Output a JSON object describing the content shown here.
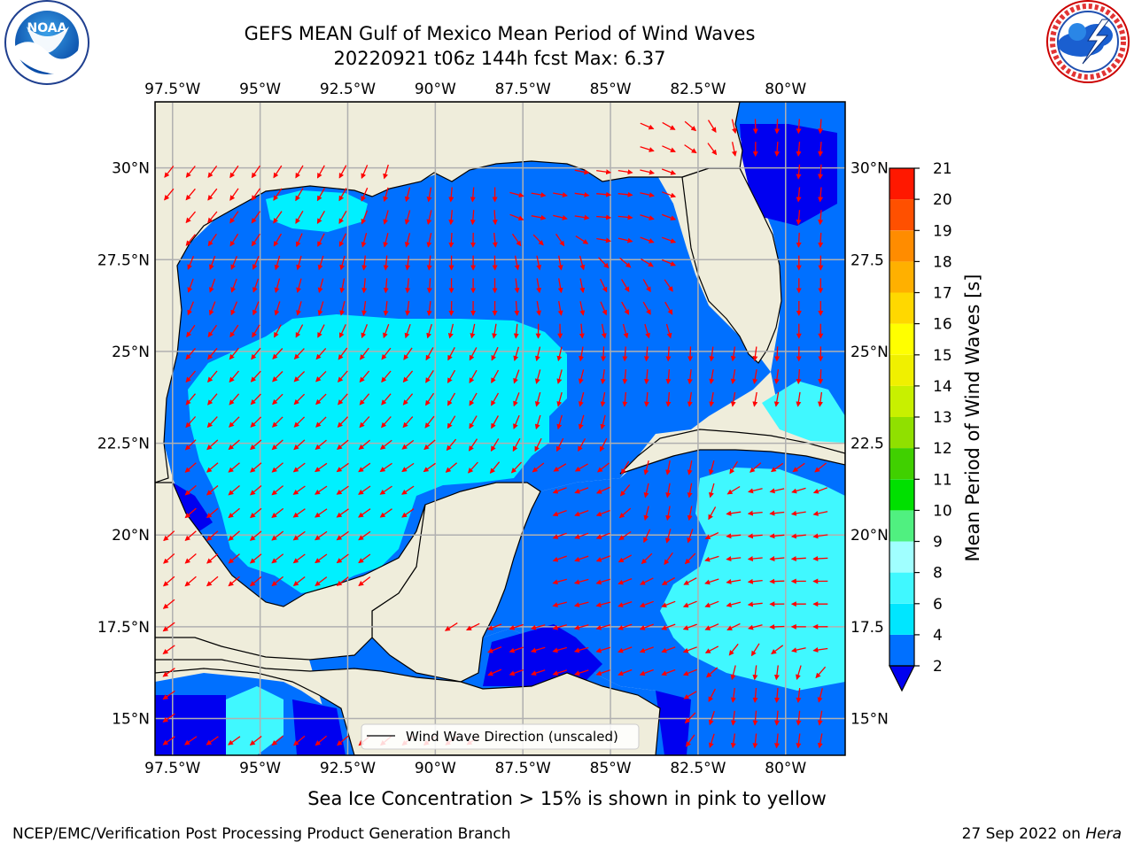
{
  "header": {
    "title_line1": "GEFS MEAN Gulf of Mexico Mean Period of Wind Waves",
    "title_line2": "20220921 t06z 144h fcst   Max: 6.37"
  },
  "logos": {
    "left": {
      "name": "NOAA",
      "ring_text": "NATIONAL OCEANIC AND ATMOSPHERIC ADMINISTRATION · U.S. DEPARTMENT OF COMMERCE"
    },
    "right": {
      "name": "NATIONAL WEATHER SERVICE"
    }
  },
  "colors": {
    "land": "#efeddb",
    "grid": "#b0b0b0",
    "arrow": "#ff0000",
    "coast": "#000000"
  },
  "chart_data": {
    "type": "heatmap",
    "region": "Gulf of Mexico",
    "variable": "Mean Period of Wind Waves",
    "max_value": 6.37,
    "lon_range": [
      -98.0,
      -78.3
    ],
    "lat_range": [
      14.0,
      31.8
    ],
    "lon_ticks": [
      "97.5°W",
      "95°W",
      "92.5°W",
      "90°W",
      "87.5°W",
      "85°W",
      "82.5°W",
      "80°W"
    ],
    "lon_tick_values": [
      -97.5,
      -95,
      -92.5,
      -90,
      -87.5,
      -85,
      -82.5,
      -80
    ],
    "lat_ticks": [
      "15°N",
      "17.5°N",
      "20°N",
      "22.5°N",
      "25°N",
      "27.5°N",
      "30°N"
    ],
    "lat_tick_values": [
      15,
      17.5,
      20,
      22.5,
      25,
      27.5,
      30
    ],
    "right_lat_ticks": [
      "15°N",
      "17.5",
      "20°N",
      "22.5",
      "25°N",
      "27.5",
      "30°N"
    ],
    "grid": true,
    "legend": {
      "placement": "bottom",
      "label": "Wind Wave Direction (unscaled)"
    },
    "colorbar": {
      "label": "Mean Period of Wind Waves [s]",
      "orientation": "vertical",
      "extend": "min",
      "bounds": [
        2,
        4,
        6,
        8,
        9,
        10,
        11,
        12,
        13,
        14,
        15,
        16,
        17,
        18,
        19,
        20,
        21
      ],
      "tick_labels": [
        "2",
        "4",
        "6",
        "8",
        "9",
        "10",
        "11",
        "12",
        "13",
        "14",
        "15",
        "16",
        "17",
        "18",
        "19",
        "20",
        "21"
      ],
      "under_color": "#0000f0",
      "colors": [
        "#0070ff",
        "#00e6ff",
        "#40f8ff",
        "#a0ffff",
        "#50f080",
        "#00e000",
        "#40d000",
        "#90e000",
        "#c8f000",
        "#f0f000",
        "#ffff00",
        "#ffd800",
        "#ffb000",
        "#ff8c00",
        "#ff5000",
        "#ff1800"
      ]
    },
    "period_zones": [
      {
        "level": "< 2 s",
        "lon": [
          -84.2,
          -81.8
        ],
        "lat": [
          29.2,
          31.8
        ]
      },
      {
        "level": "< 2 s",
        "lon": [
          -87.8,
          -85.3
        ],
        "lat": [
          15.9,
          17.4
        ]
      },
      {
        "level": "< 2 s",
        "lon": [
          -98.0,
          -95.5
        ],
        "lat": [
          14.0,
          15.8
        ]
      },
      {
        "level": "< 2 s",
        "lon": [
          -92.8,
          -91.0
        ],
        "lat": [
          14.0,
          15.6
        ]
      },
      {
        "level": "4-6 s",
        "lon": [
          -97.0,
          -86.3
        ],
        "lat": [
          20.0,
          25.8
        ]
      },
      {
        "level": "4-6 s",
        "lon": [
          -96.2,
          -92.8
        ],
        "lat": [
          28.2,
          29.5
        ]
      },
      {
        "level": "4-6 s",
        "lon": [
          -82.5,
          -78.3
        ],
        "lat": [
          16.5,
          22.0
        ]
      },
      {
        "level": "4-6 s",
        "lon": [
          -80.0,
          -78.3
        ],
        "lat": [
          22.8,
          24.2
        ]
      },
      {
        "level": "4-6 s",
        "lon": [
          -96.0,
          -94.8
        ],
        "lat": [
          14.2,
          15.8
        ]
      }
    ],
    "wind_direction_deg": [
      {
        "lon": -97.0,
        "lat": 28.5,
        "dir": 230
      },
      {
        "lon": -95.0,
        "lat": 28.7,
        "dir": 235
      },
      {
        "lon": -93.0,
        "lat": 28.8,
        "dir": 240
      },
      {
        "lon": -91.0,
        "lat": 28.5,
        "dir": 255
      },
      {
        "lon": -89.0,
        "lat": 29.2,
        "dir": 265
      },
      {
        "lon": -87.0,
        "lat": 29.2,
        "dir": 350
      },
      {
        "lon": -85.0,
        "lat": 28.8,
        "dir": 355
      },
      {
        "lon": -83.5,
        "lat": 28.0,
        "dir": 340
      },
      {
        "lon": -96.5,
        "lat": 27.0,
        "dir": 250
      },
      {
        "lon": -94.0,
        "lat": 27.0,
        "dir": 255
      },
      {
        "lon": -91.5,
        "lat": 27.0,
        "dir": 265
      },
      {
        "lon": -89.0,
        "lat": 27.0,
        "dir": 270
      },
      {
        "lon": -86.5,
        "lat": 27.0,
        "dir": 280
      },
      {
        "lon": -84.0,
        "lat": 26.5,
        "dir": 300
      },
      {
        "lon": -96.5,
        "lat": 24.5,
        "dir": 230
      },
      {
        "lon": -94.0,
        "lat": 24.0,
        "dir": 225
      },
      {
        "lon": -91.5,
        "lat": 24.0,
        "dir": 230
      },
      {
        "lon": -89.0,
        "lat": 24.0,
        "dir": 240
      },
      {
        "lon": -86.5,
        "lat": 24.0,
        "dir": 255
      },
      {
        "lon": -84.0,
        "lat": 24.5,
        "dir": 265
      },
      {
        "lon": -81.5,
        "lat": 24.0,
        "dir": 260
      },
      {
        "lon": -79.5,
        "lat": 26.0,
        "dir": 270
      },
      {
        "lon": -79.5,
        "lat": 29.5,
        "dir": 265
      },
      {
        "lon": -95.5,
        "lat": 21.5,
        "dir": 220
      },
      {
        "lon": -93.0,
        "lat": 21.0,
        "dir": 215
      },
      {
        "lon": -91.0,
        "lat": 21.5,
        "dir": 215
      },
      {
        "lon": -86.0,
        "lat": 20.5,
        "dir": 200
      },
      {
        "lon": -86.0,
        "lat": 18.0,
        "dir": 195
      },
      {
        "lon": -83.0,
        "lat": 21.0,
        "dir": 260
      },
      {
        "lon": -81.0,
        "lat": 20.0,
        "dir": 185
      },
      {
        "lon": -79.5,
        "lat": 18.0,
        "dir": 180
      },
      {
        "lon": -83.5,
        "lat": 17.0,
        "dir": 200
      },
      {
        "lon": -80.5,
        "lat": 15.5,
        "dir": 265
      },
      {
        "lon": -97.0,
        "lat": 15.0,
        "dir": 215
      },
      {
        "lon": -93.5,
        "lat": 15.0,
        "dir": 220
      }
    ]
  },
  "footer": {
    "ice_note": "Sea Ice Concentration > 15% is shown in pink to yellow",
    "credit": "NCEP/EMC/Verification Post Processing Product Generation Branch",
    "date": "27 Sep 2022 on",
    "machine": "Hera"
  }
}
